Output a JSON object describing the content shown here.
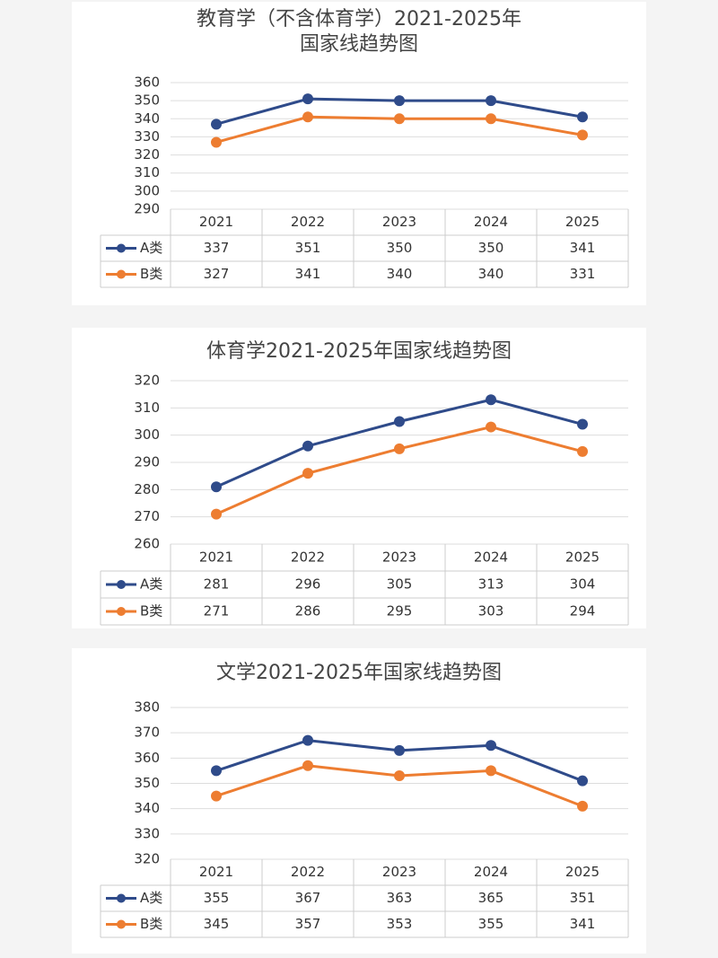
{
  "chart_data": [
    {
      "type": "line",
      "title": "教育学（不含体育学）2021-2025年",
      "subtitle": "国家线趋势图",
      "categories": [
        "2021",
        "2022",
        "2023",
        "2024",
        "2025"
      ],
      "series": [
        {
          "name": "A类",
          "color": "#2f4b8a",
          "values": [
            337,
            351,
            350,
            350,
            341
          ]
        },
        {
          "name": "B类",
          "color": "#ed7d31",
          "values": [
            327,
            341,
            340,
            340,
            331
          ]
        }
      ],
      "ylim": [
        290,
        360
      ],
      "yticks": [
        290,
        300,
        310,
        320,
        330,
        340,
        350,
        360
      ],
      "grid": true
    },
    {
      "type": "line",
      "title": "体育学2021-2025年国家线趋势图",
      "categories": [
        "2021",
        "2022",
        "2023",
        "2024",
        "2025"
      ],
      "series": [
        {
          "name": "A类",
          "color": "#2f4b8a",
          "values": [
            281,
            296,
            305,
            313,
            304
          ]
        },
        {
          "name": "B类",
          "color": "#ed7d31",
          "values": [
            271,
            286,
            295,
            303,
            294
          ]
        }
      ],
      "ylim": [
        260,
        320
      ],
      "yticks": [
        260,
        270,
        280,
        290,
        300,
        310,
        320
      ],
      "grid": true
    },
    {
      "type": "line",
      "title": "文学2021-2025年国家线趋势图",
      "categories": [
        "2021",
        "2022",
        "2023",
        "2024",
        "2025"
      ],
      "series": [
        {
          "name": "A类",
          "color": "#2f4b8a",
          "values": [
            355,
            367,
            363,
            365,
            351
          ]
        },
        {
          "name": "B类",
          "color": "#ed7d31",
          "values": [
            345,
            357,
            353,
            355,
            341
          ]
        }
      ],
      "ylim": [
        320,
        380
      ],
      "yticks": [
        320,
        330,
        340,
        350,
        360,
        370,
        380
      ],
      "grid": true
    }
  ]
}
